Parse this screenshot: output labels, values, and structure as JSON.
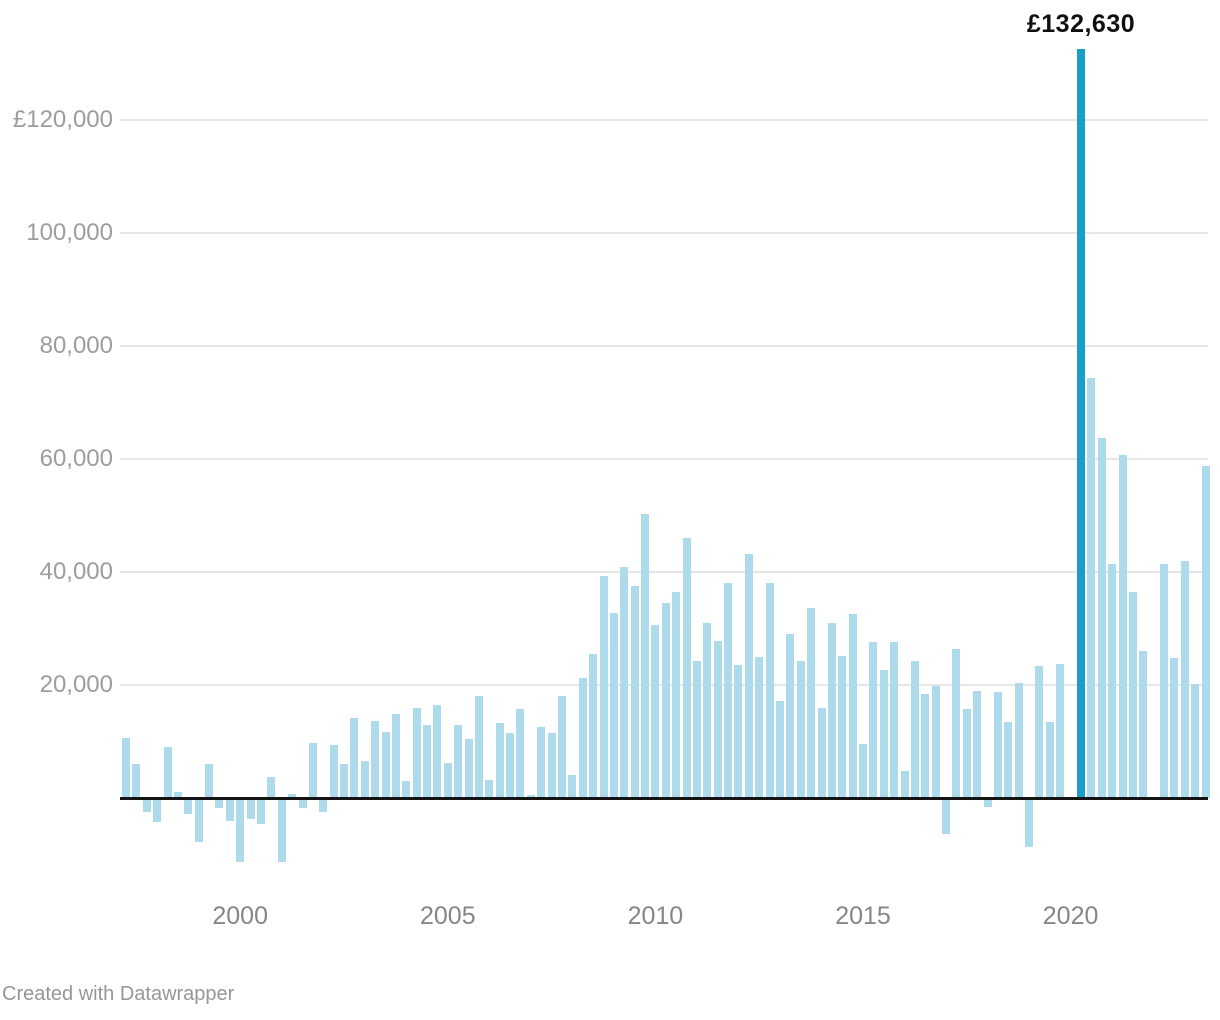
{
  "footer": {
    "attribution": "Created with Datawrapper"
  },
  "chart_data": {
    "type": "bar",
    "title": "",
    "xlabel": "",
    "ylabel": "",
    "unit_prefix": "£",
    "ylim": [
      -14000,
      135000
    ],
    "grid": "horizontal",
    "legend": "none",
    "y_ticks": [
      {
        "value": 20000,
        "label": "20,000"
      },
      {
        "value": 40000,
        "label": "40,000"
      },
      {
        "value": 60000,
        "label": "60,000"
      },
      {
        "value": 80000,
        "label": "80,000"
      },
      {
        "value": 100000,
        "label": "100,000"
      },
      {
        "value": 120000,
        "label": "£120,000"
      }
    ],
    "x_ticks": [
      "2000",
      "2005",
      "2010",
      "2015",
      "2020"
    ],
    "highlight": {
      "x": "2020 Q2",
      "value": 132630,
      "label": "£132,630"
    },
    "points": [
      [
        "1997 Q2",
        10700
      ],
      [
        "1997 Q3",
        6000
      ],
      [
        "1997 Q4",
        -2400
      ],
      [
        "1998 Q1",
        -4200
      ],
      [
        "1998 Q2",
        9100
      ],
      [
        "1998 Q3",
        1000
      ],
      [
        "1998 Q4",
        -2800
      ],
      [
        "1999 Q1",
        -7800
      ],
      [
        "1999 Q2",
        6000
      ],
      [
        "1999 Q3",
        -1800
      ],
      [
        "1999 Q4",
        -4100
      ],
      [
        "2000 Q1",
        -11400
      ],
      [
        "2000 Q2",
        -3700
      ],
      [
        "2000 Q3",
        -4600
      ],
      [
        "2000 Q4",
        3700
      ],
      [
        "2001 Q1",
        -11400
      ],
      [
        "2001 Q2",
        700
      ],
      [
        "2001 Q3",
        -1700
      ],
      [
        "2001 Q4",
        9700
      ],
      [
        "2002 Q1",
        -2500
      ],
      [
        "2002 Q2",
        9400
      ],
      [
        "2002 Q3",
        6100
      ],
      [
        "2002 Q4",
        14100
      ],
      [
        "2003 Q1",
        6500
      ],
      [
        "2003 Q2",
        13600
      ],
      [
        "2003 Q3",
        11700
      ],
      [
        "2003 Q4",
        14900
      ],
      [
        "2004 Q1",
        3000
      ],
      [
        "2004 Q2",
        15900
      ],
      [
        "2004 Q3",
        12900
      ],
      [
        "2004 Q4",
        16500
      ],
      [
        "2005 Q1",
        6200
      ],
      [
        "2005 Q2",
        13000
      ],
      [
        "2005 Q3",
        10400
      ],
      [
        "2005 Q4",
        18100
      ],
      [
        "2006 Q1",
        3200
      ],
      [
        "2006 Q2",
        13300
      ],
      [
        "2006 Q3",
        11500
      ],
      [
        "2006 Q4",
        15800
      ],
      [
        "2007 Q1",
        500
      ],
      [
        "2007 Q2",
        12600
      ],
      [
        "2007 Q3",
        11600
      ],
      [
        "2007 Q4",
        18000
      ],
      [
        "2008 Q1",
        4100
      ],
      [
        "2008 Q2",
        21200
      ],
      [
        "2008 Q3",
        25500
      ],
      [
        "2008 Q4",
        39300
      ],
      [
        "2009 Q1",
        32700
      ],
      [
        "2009 Q2",
        40900
      ],
      [
        "2009 Q3",
        37500
      ],
      [
        "2009 Q4",
        50300
      ],
      [
        "2010 Q1",
        30700
      ],
      [
        "2010 Q2",
        34500
      ],
      [
        "2010 Q3",
        36500
      ],
      [
        "2010 Q4",
        46000
      ],
      [
        "2011 Q1",
        24200
      ],
      [
        "2011 Q2",
        31000
      ],
      [
        "2011 Q3",
        27800
      ],
      [
        "2011 Q4",
        38000
      ],
      [
        "2012 Q1",
        23500
      ],
      [
        "2012 Q2",
        43200
      ],
      [
        "2012 Q3",
        25000
      ],
      [
        "2012 Q4",
        38000
      ],
      [
        "2013 Q1",
        17100
      ],
      [
        "2013 Q2",
        29000
      ],
      [
        "2013 Q3",
        24300
      ],
      [
        "2013 Q4",
        33700
      ],
      [
        "2014 Q1",
        16000
      ],
      [
        "2014 Q2",
        30900
      ],
      [
        "2014 Q3",
        25100
      ],
      [
        "2014 Q4",
        32600
      ],
      [
        "2015 Q1",
        9600
      ],
      [
        "2015 Q2",
        27700
      ],
      [
        "2015 Q3",
        22700
      ],
      [
        "2015 Q4",
        27600
      ],
      [
        "2016 Q1",
        4700
      ],
      [
        "2016 Q2",
        24300
      ],
      [
        "2016 Q3",
        18500
      ],
      [
        "2016 Q4",
        19800
      ],
      [
        "2017 Q1",
        -6300
      ],
      [
        "2017 Q2",
        26300
      ],
      [
        "2017 Q3",
        15800
      ],
      [
        "2017 Q4",
        18900
      ],
      [
        "2018 Q1",
        -1600
      ],
      [
        "2018 Q2",
        18800
      ],
      [
        "2018 Q3",
        13400
      ],
      [
        "2018 Q4",
        20400
      ],
      [
        "2019 Q1",
        -8700
      ],
      [
        "2019 Q2",
        23300
      ],
      [
        "2019 Q3",
        13400
      ],
      [
        "2019 Q4",
        23800
      ],
      [
        "2020 Q1",
        0
      ],
      [
        "2020 Q2",
        132630
      ],
      [
        "2020 Q3",
        74300
      ],
      [
        "2020 Q4",
        63800
      ],
      [
        "2021 Q1",
        41400
      ],
      [
        "2021 Q2",
        60700
      ],
      [
        "2021 Q3",
        36400
      ],
      [
        "2021 Q4",
        26000
      ],
      [
        "2022 Q1",
        0
      ],
      [
        "2022 Q2",
        41400
      ],
      [
        "2022 Q3",
        24800
      ],
      [
        "2022 Q4",
        42000
      ],
      [
        "2023 Q1",
        20100
      ],
      [
        "2023 Q2",
        58700
      ]
    ],
    "colors": {
      "bar": "#aedbec",
      "highlight": "#1b9dc9",
      "grid": "#e7e7e7",
      "axis_line": "#141414",
      "y_label": "#9d9d9d",
      "x_label": "#868686",
      "annotation": "#0f0f0f",
      "attribution": "#969696",
      "background": "#ffffff"
    }
  }
}
